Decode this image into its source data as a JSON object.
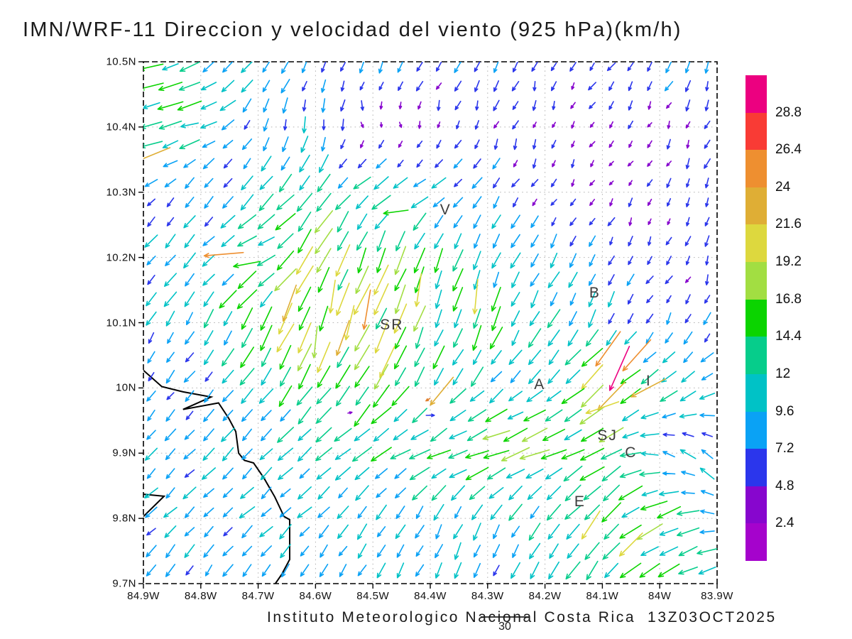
{
  "title": "IMN/WRF-11 Direccion y velocidad del viento (925 hPa)(km/h)",
  "footer": {
    "credit": "Instituto Meteorologico Nacional Costa Rica  13Z03OCT2025",
    "reference_label": "30"
  },
  "axes": {
    "lon": {
      "labels": [
        "84.9W",
        "84.8W",
        "84.7W",
        "84.6W",
        "84.5W",
        "84.4W",
        "84.3W",
        "84.2W",
        "84.1W",
        "84W",
        "83.9W"
      ],
      "values": [
        -84.9,
        -84.8,
        -84.7,
        -84.6,
        -84.5,
        -84.4,
        -84.3,
        -84.2,
        -84.1,
        -84.0,
        -83.9
      ]
    },
    "lat": {
      "labels": [
        "10.5N",
        "10.4N",
        "10.3N",
        "10.2N",
        "10.1N",
        "10N",
        "9.9N",
        "9.8N",
        "9.7N"
      ],
      "values": [
        10.5,
        10.4,
        10.3,
        10.2,
        10.1,
        10.0,
        9.9,
        9.8,
        9.7
      ]
    }
  },
  "colorbar": {
    "labels": [
      "28.8",
      "26.4",
      "24",
      "21.6",
      "19.2",
      "16.8",
      "14.4",
      "12",
      "9.6",
      "7.2",
      "4.8",
      "2.4"
    ],
    "colors_top_to_bottom": [
      "#EC0080",
      "#F93B35",
      "#EE8F30",
      "#DFAE35",
      "#DDD83E",
      "#A2DE42",
      "#0BD400",
      "#06CD8B",
      "#00C2C6",
      "#0AA2F5",
      "#2B36EC",
      "#8706CE",
      "#A503CC"
    ],
    "thresholds_ascending": [
      2.4,
      4.8,
      7.2,
      9.6,
      12,
      14.4,
      16.8,
      19.2,
      21.6,
      24,
      26.4,
      28.8
    ],
    "units": "km/h"
  },
  "stations": [
    {
      "label": "V",
      "lon": -84.373,
      "lat": 10.273
    },
    {
      "label": "SR",
      "lon": -84.467,
      "lat": 10.096
    },
    {
      "label": "B",
      "lon": -84.113,
      "lat": 10.145
    },
    {
      "label": "A",
      "lon": -84.209,
      "lat": 10.005
    },
    {
      "label": "SJ",
      "lon": -84.091,
      "lat": 9.926
    },
    {
      "label": "C",
      "lon": -84.05,
      "lat": 9.9
    },
    {
      "label": "E",
      "lon": -84.139,
      "lat": 9.825
    },
    {
      "label": "I",
      "lon": -84.019,
      "lat": 10.01
    }
  ],
  "chart_data": {
    "type": "quiver",
    "title": "IMN/WRF-11 Direccion y velocidad del viento (925 hPa)(km/h)",
    "level": "925 hPa",
    "units": "km/h",
    "valid_time": "13Z03OCT2025",
    "lon_range": [
      -84.9,
      -83.9
    ],
    "lat_range": [
      9.7,
      10.5
    ],
    "reference_vector_kmh": 30,
    "grid_lons": [
      -84.9,
      -84.8,
      -84.7,
      -84.6,
      -84.5,
      -84.4,
      -84.3,
      -84.2,
      -84.1,
      -84.0,
      -83.9
    ],
    "grid_lats": [
      10.5,
      10.4,
      10.3,
      10.2,
      10.1,
      10.0,
      9.9,
      9.8,
      9.7
    ],
    "u": [
      [
        -12,
        -9,
        -5,
        -3,
        -2,
        -4,
        -3,
        -2,
        -3,
        -3,
        -2
      ],
      [
        -14,
        -12,
        -2,
        -1,
        1,
        0,
        -2,
        -1,
        -2,
        -2,
        -2
      ],
      [
        -5,
        -4,
        -6,
        -8,
        -9,
        -8,
        -4,
        -2,
        -2,
        -2,
        -3
      ],
      [
        -5,
        -7,
        -13,
        -7,
        -6,
        -4,
        -5,
        -4,
        -3,
        -2,
        -2
      ],
      [
        -4,
        -5,
        -8,
        -5,
        -7,
        -5,
        -4,
        -6,
        -4,
        -3,
        -3
      ],
      [
        -4,
        -5,
        -6,
        -9,
        -9,
        -6,
        -8,
        -6,
        -16,
        -9,
        -8
      ],
      [
        -5,
        -6,
        -6,
        -8,
        -10,
        -12,
        -14,
        -15,
        -11,
        -8,
        -6
      ],
      [
        -6,
        -6,
        -7,
        -6,
        -5,
        -4,
        -4,
        -6,
        -11,
        -13,
        -9
      ],
      [
        -4,
        -4,
        -5,
        -4,
        -4,
        -4,
        -3,
        -4,
        -7,
        -11,
        -9
      ]
    ],
    "v": [
      [
        -2,
        -7,
        -7,
        -6,
        -6,
        -6,
        -6,
        -5,
        -5,
        -6,
        -6
      ],
      [
        -3,
        -4,
        -7,
        -8,
        -3,
        -4,
        -5,
        -4,
        -3,
        -4,
        -5
      ],
      [
        -4,
        -6,
        -7,
        -9,
        -6,
        -5,
        -6,
        -4,
        -3,
        -4,
        -5
      ],
      [
        -7,
        -7,
        -6,
        -14,
        -16,
        -11,
        -10,
        -8,
        -6,
        -4,
        -5
      ],
      [
        -7,
        -8,
        -13,
        -18,
        -16,
        -13,
        -12,
        -10,
        -8,
        -5,
        -6
      ],
      [
        -5,
        -6,
        -8,
        -13,
        -13,
        -10,
        -8,
        -6,
        -14,
        -7,
        -4
      ],
      [
        -6,
        -6,
        -7,
        -6,
        -6,
        -6,
        -4,
        -6,
        -7,
        3,
        7
      ],
      [
        -5,
        -6,
        -6,
        -6,
        -7,
        -8,
        -8,
        -9,
        -11,
        -7,
        2
      ],
      [
        -6,
        -7,
        -7,
        -8,
        -7,
        -8,
        -8,
        -9,
        -9,
        -6,
        -4
      ]
    ],
    "feature_vectors": [
      {
        "lon": -84.885,
        "lat": 10.357,
        "u": -22,
        "v": -9
      },
      {
        "lon": -84.76,
        "lat": 10.205,
        "u": -24,
        "v": -2
      },
      {
        "lon": -84.72,
        "lat": 10.19,
        "u": -16,
        "v": -3
      },
      {
        "lon": -84.645,
        "lat": 10.13,
        "u": -8,
        "v": -22
      },
      {
        "lon": -84.57,
        "lat": 10.14,
        "u": -3,
        "v": -20
      },
      {
        "lon": -84.51,
        "lat": 10.12,
        "u": -4,
        "v": -24
      },
      {
        "lon": -84.54,
        "lat": 10.1,
        "u": -5,
        "v": -21
      },
      {
        "lon": -84.42,
        "lat": 10.15,
        "u": -3,
        "v": -20
      },
      {
        "lon": -84.6,
        "lat": 10.07,
        "u": -2,
        "v": -19
      },
      {
        "lon": -84.32,
        "lat": 10.14,
        "u": -2,
        "v": -21
      },
      {
        "lon": -84.475,
        "lat": 10.04,
        "u": -9,
        "v": -19
      },
      {
        "lon": -84.38,
        "lat": 9.995,
        "u": -14,
        "v": -17
      },
      {
        "lon": -84.54,
        "lat": 9.962,
        "u": 2.5,
        "v": 0.5
      },
      {
        "lon": -84.4,
        "lat": 9.958,
        "u": 5,
        "v": 0
      },
      {
        "lon": -84.07,
        "lat": 10.03,
        "u": -12,
        "v": -27
      },
      {
        "lon": -84.09,
        "lat": 10.06,
        "u": -15,
        "v": -21
      },
      {
        "lon": -84.04,
        "lat": 10.05,
        "u": -17,
        "v": -19
      },
      {
        "lon": -84.02,
        "lat": 10.0,
        "u": -21,
        "v": -11
      },
      {
        "lon": -84.1,
        "lat": 9.97,
        "u": -20,
        "v": -7
      },
      {
        "lon": -84.46,
        "lat": 10.27,
        "u": -15,
        "v": -2
      },
      {
        "lon": -84.12,
        "lat": 9.79,
        "u": -11,
        "v": -17
      },
      {
        "lon": -84.05,
        "lat": 9.76,
        "u": -14,
        "v": -14
      },
      {
        "lon": -84.01,
        "lat": 9.82,
        "u": -16,
        "v": -5
      },
      {
        "lon": -84.404,
        "lat": 9.982,
        "u": -2.5,
        "v": -1.5,
        "color": "#E08030"
      }
    ],
    "display_grid": {
      "cols": 30,
      "rows": 27,
      "lon_start": -84.8864,
      "dlon": 0.03342,
      "lat_start": 10.4924,
      "dlat": 0.0297
    },
    "coastline": {
      "main": [
        [
          -84.9,
          10.027
        ],
        [
          -84.868,
          10.002
        ],
        [
          -84.831,
          9.994
        ],
        [
          -84.782,
          9.986
        ],
        [
          -84.831,
          9.967
        ],
        [
          -84.769,
          9.977
        ],
        [
          -84.751,
          9.953
        ],
        [
          -84.739,
          9.933
        ],
        [
          -84.734,
          9.9
        ],
        [
          -84.724,
          9.889
        ],
        [
          -84.708,
          9.885
        ],
        [
          -84.69,
          9.862
        ],
        [
          -84.671,
          9.833
        ],
        [
          -84.655,
          9.803
        ],
        [
          -84.645,
          9.798
        ],
        [
          -84.645,
          9.737
        ],
        [
          -84.659,
          9.714
        ],
        [
          -84.67,
          9.7
        ]
      ],
      "peninsula": [
        [
          -84.9,
          9.837
        ],
        [
          -84.864,
          9.834
        ],
        [
          -84.9,
          9.803
        ]
      ]
    }
  }
}
